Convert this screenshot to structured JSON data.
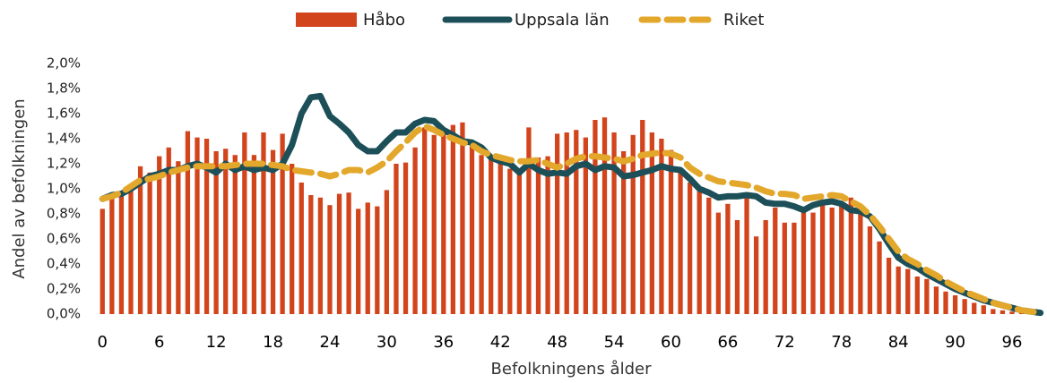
{
  "chart_data": {
    "type": "bar_line",
    "x_label": "Befolkningens ålder",
    "y_label": "Andel av befolkningen",
    "legend": "top",
    "x": [
      0,
      1,
      2,
      3,
      4,
      5,
      6,
      7,
      8,
      9,
      10,
      11,
      12,
      13,
      14,
      15,
      16,
      17,
      18,
      19,
      20,
      21,
      22,
      23,
      24,
      25,
      26,
      27,
      28,
      29,
      30,
      31,
      32,
      33,
      34,
      35,
      36,
      37,
      38,
      39,
      40,
      41,
      42,
      43,
      44,
      45,
      46,
      47,
      48,
      49,
      50,
      51,
      52,
      53,
      54,
      55,
      56,
      57,
      58,
      59,
      60,
      61,
      62,
      63,
      64,
      65,
      66,
      67,
      68,
      69,
      70,
      71,
      72,
      73,
      74,
      75,
      76,
      77,
      78,
      79,
      80,
      81,
      82,
      83,
      84,
      85,
      86,
      87,
      88,
      89,
      90,
      91,
      92,
      93,
      94,
      95,
      96,
      97,
      98,
      99
    ],
    "xlim": [
      -0.5,
      99.5
    ],
    "xticks": [
      0,
      6,
      12,
      18,
      24,
      30,
      36,
      42,
      48,
      54,
      60,
      66,
      72,
      78,
      84,
      90,
      96
    ],
    "ylim": [
      0,
      2
    ],
    "yticks": [
      {
        "value": 0,
        "label": "0,0%"
      },
      {
        "value": 0.2,
        "label": "0,2%"
      },
      {
        "value": 0.4,
        "label": "0,4%"
      },
      {
        "value": 0.6,
        "label": "0,6%"
      },
      {
        "value": 0.8,
        "label": "0,8%"
      },
      {
        "value": 1.0,
        "label": "1,0%"
      },
      {
        "value": 1.2,
        "label": "1,2%"
      },
      {
        "value": 1.4,
        "label": "1,4%"
      },
      {
        "value": 1.6,
        "label": "1,6%"
      },
      {
        "value": 1.8,
        "label": "1,8%"
      },
      {
        "value": 2.0,
        "label": "2,0%"
      }
    ],
    "series": [
      {
        "name": "Håbo",
        "kind": "bar",
        "color": "#d2441c",
        "values": [
          0.84,
          0.93,
          0.95,
          1.0,
          1.18,
          1.13,
          1.26,
          1.33,
          1.22,
          1.46,
          1.41,
          1.4,
          1.3,
          1.32,
          1.27,
          1.45,
          1.27,
          1.45,
          1.31,
          1.44,
          1.2,
          1.05,
          0.95,
          0.93,
          0.87,
          0.96,
          0.97,
          0.84,
          0.89,
          0.86,
          0.99,
          1.2,
          1.21,
          1.33,
          1.49,
          1.43,
          1.47,
          1.51,
          1.53,
          1.37,
          1.27,
          1.24,
          1.21,
          1.16,
          1.14,
          1.49,
          1.25,
          1.26,
          1.44,
          1.45,
          1.47,
          1.41,
          1.55,
          1.57,
          1.45,
          1.3,
          1.43,
          1.55,
          1.45,
          1.4,
          1.31,
          1.16,
          1.05,
          0.98,
          0.93,
          0.81,
          0.88,
          0.75,
          0.93,
          0.62,
          0.75,
          0.85,
          0.73,
          0.73,
          0.84,
          0.81,
          0.88,
          0.85,
          0.9,
          0.93,
          0.8,
          0.7,
          0.58,
          0.45,
          0.38,
          0.36,
          0.3,
          0.28,
          0.22,
          0.18,
          0.15,
          0.12,
          0.09,
          0.07,
          0.04,
          0.03,
          0.02,
          0.01,
          0.01,
          0.0
        ]
      },
      {
        "name": "Uppsala län",
        "kind": "line",
        "color": "#1d4f58",
        "values": [
          0.92,
          0.95,
          0.96,
          1.0,
          1.05,
          1.1,
          1.12,
          1.15,
          1.15,
          1.18,
          1.2,
          1.17,
          1.13,
          1.2,
          1.15,
          1.18,
          1.15,
          1.17,
          1.15,
          1.2,
          1.35,
          1.6,
          1.73,
          1.74,
          1.58,
          1.52,
          1.45,
          1.35,
          1.3,
          1.3,
          1.38,
          1.45,
          1.45,
          1.52,
          1.55,
          1.54,
          1.47,
          1.43,
          1.38,
          1.37,
          1.33,
          1.25,
          1.22,
          1.2,
          1.13,
          1.2,
          1.15,
          1.12,
          1.13,
          1.12,
          1.18,
          1.2,
          1.15,
          1.18,
          1.17,
          1.1,
          1.11,
          1.13,
          1.15,
          1.18,
          1.16,
          1.15,
          1.08,
          1.0,
          0.97,
          0.93,
          0.94,
          0.94,
          0.95,
          0.94,
          0.89,
          0.88,
          0.88,
          0.86,
          0.83,
          0.87,
          0.89,
          0.9,
          0.88,
          0.83,
          0.82,
          0.78,
          0.68,
          0.56,
          0.45,
          0.4,
          0.37,
          0.32,
          0.28,
          0.24,
          0.2,
          0.17,
          0.14,
          0.11,
          0.09,
          0.07,
          0.05,
          0.03,
          0.02,
          0.01
        ]
      },
      {
        "name": "Riket",
        "kind": "dashed",
        "color": "#e3a82b",
        "values": [
          0.92,
          0.94,
          0.97,
          1.02,
          1.07,
          1.08,
          1.1,
          1.13,
          1.15,
          1.17,
          1.18,
          1.18,
          1.18,
          1.18,
          1.19,
          1.2,
          1.2,
          1.2,
          1.19,
          1.18,
          1.15,
          1.14,
          1.13,
          1.12,
          1.1,
          1.12,
          1.15,
          1.15,
          1.13,
          1.17,
          1.22,
          1.3,
          1.37,
          1.45,
          1.5,
          1.47,
          1.43,
          1.4,
          1.37,
          1.35,
          1.3,
          1.27,
          1.25,
          1.23,
          1.22,
          1.22,
          1.23,
          1.2,
          1.17,
          1.2,
          1.24,
          1.26,
          1.26,
          1.25,
          1.24,
          1.22,
          1.24,
          1.27,
          1.28,
          1.29,
          1.28,
          1.25,
          1.17,
          1.12,
          1.09,
          1.06,
          1.05,
          1.04,
          1.03,
          1.01,
          0.98,
          0.96,
          0.96,
          0.95,
          0.92,
          0.93,
          0.94,
          0.95,
          0.94,
          0.9,
          0.86,
          0.79,
          0.7,
          0.6,
          0.5,
          0.44,
          0.4,
          0.35,
          0.31,
          0.26,
          0.22,
          0.18,
          0.15,
          0.12,
          0.09,
          0.07,
          0.05,
          0.03,
          0.02,
          0.01
        ]
      }
    ]
  }
}
